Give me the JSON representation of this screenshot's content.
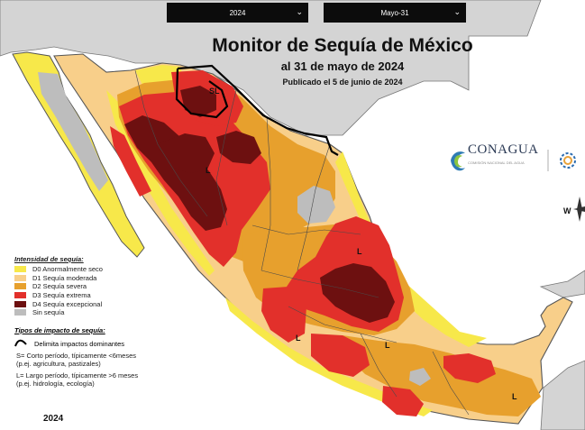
{
  "controls": {
    "year_select": "2024",
    "date_select": "Mayo-31"
  },
  "header": {
    "title": "Monitor de Sequía de México",
    "date_line": "al 31 de mayo de 2024",
    "published": "Publicado el 5 de junio de 2024"
  },
  "logo": {
    "name": "CONAGUA",
    "subtitle": "COMISIÓN NACIONAL DEL AGUA"
  },
  "legend": {
    "intensity_title": "Intensidad de sequía:",
    "categories": [
      {
        "label": "D0 Anormalmente seco",
        "color": "#f7e84a"
      },
      {
        "label": "D1 Sequía moderada",
        "color": "#f8cf8a"
      },
      {
        "label": "D2 Sequía severa",
        "color": "#e7a02d"
      },
      {
        "label": "D3 Sequía extrema",
        "color": "#e2302b"
      },
      {
        "label": "D4 Sequía excepcional",
        "color": "#6d1010"
      },
      {
        "label": "Sin sequía",
        "color": "#bdbdbd"
      }
    ],
    "impact_title": "Tipos de impacto de sequía:",
    "impact_line_label": "Delimita impactos dominantes",
    "impact_short_1": "S= Corto período, típicamente <6meses",
    "impact_short_2": "(p.ej. agricultura, pastizales)",
    "impact_long_1": "L= Largo período, típicamente >6 meses",
    "impact_long_2": "(p.ej. hidrología, ecología)"
  },
  "map": {
    "labels": {
      "sl": "SL",
      "l": "L"
    },
    "compass_w": "W",
    "ocean_color": "#ffffff",
    "outside_land_color": "#d4d4d4"
  },
  "footer": {
    "year": "2024"
  }
}
